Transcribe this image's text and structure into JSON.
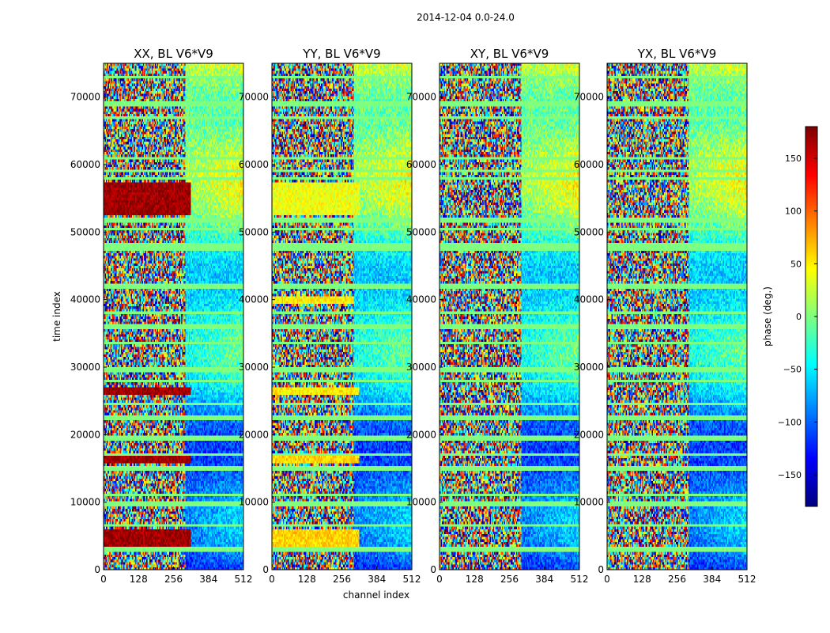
{
  "chart_data": {
    "type": "heatmap",
    "suptitle": "2014-12-04 0.0-24.0",
    "xlabel": "channel index",
    "ylabel": "time index",
    "xlim": [
      0,
      512
    ],
    "ylim": [
      0,
      75000
    ],
    "xticks": [
      0,
      128,
      256,
      384,
      512
    ],
    "xtick_labels": [
      "0",
      "128",
      "256",
      "384",
      "512"
    ],
    "yticks": [
      0,
      10000,
      20000,
      30000,
      40000,
      50000,
      60000,
      70000
    ],
    "ytick_labels": [
      "0",
      "10000",
      "20000",
      "30000",
      "40000",
      "50000",
      "60000",
      "70000"
    ],
    "colormap": "jet",
    "panels": [
      {
        "title": "XX, BL V6*V9",
        "polarization": "XX",
        "bands": [
          {
            "t": [
              2500,
              6000
            ],
            "ch": [
              0,
              320
            ],
            "phase": 170
          },
          {
            "t": [
              15700,
              16700
            ],
            "ch": [
              0,
              320
            ],
            "phase": 170
          },
          {
            "t": [
              25800,
              27000
            ],
            "ch": [
              0,
              320
            ],
            "phase": 170
          },
          {
            "t": [
              52500,
              57300
            ],
            "ch": [
              0,
              320
            ],
            "phase": 170
          }
        ]
      },
      {
        "title": "YY, BL V6*V9",
        "polarization": "YY",
        "bands": [
          {
            "t": [
              2500,
              6000
            ],
            "ch": [
              0,
              320
            ],
            "phase": 60
          },
          {
            "t": [
              15700,
              16700
            ],
            "ch": [
              0,
              320
            ],
            "phase": 60
          },
          {
            "t": [
              25800,
              27000
            ],
            "ch": [
              0,
              320
            ],
            "phase": 50
          },
          {
            "t": [
              52500,
              57300
            ],
            "ch": [
              0,
              320
            ],
            "phase": 40
          },
          {
            "t": [
              39500,
              40500
            ],
            "ch": [
              0,
              300
            ],
            "phase": 50
          }
        ]
      },
      {
        "title": "XY, BL V6*V9",
        "polarization": "XY",
        "bands": []
      },
      {
        "title": "YX, BL V6*V9",
        "polarization": "YX",
        "bands": []
      }
    ],
    "flagged_rows": [
      3000,
      6500,
      9800,
      11000,
      15000,
      17000,
      19500,
      22500,
      24500,
      28000,
      29600,
      33500,
      36000,
      38000,
      42000,
      47500,
      48000,
      50500,
      51500,
      52000,
      58000,
      59000,
      61000,
      67000,
      69000,
      73000
    ],
    "colorbar": {
      "label": "phase (deg.)",
      "range": [
        -180,
        180
      ],
      "ticks": [
        -150,
        -100,
        -50,
        0,
        50,
        100,
        150
      ],
      "tick_labels": [
        "−150",
        "−100",
        "−50",
        "0",
        "50",
        "100",
        "150"
      ]
    }
  }
}
